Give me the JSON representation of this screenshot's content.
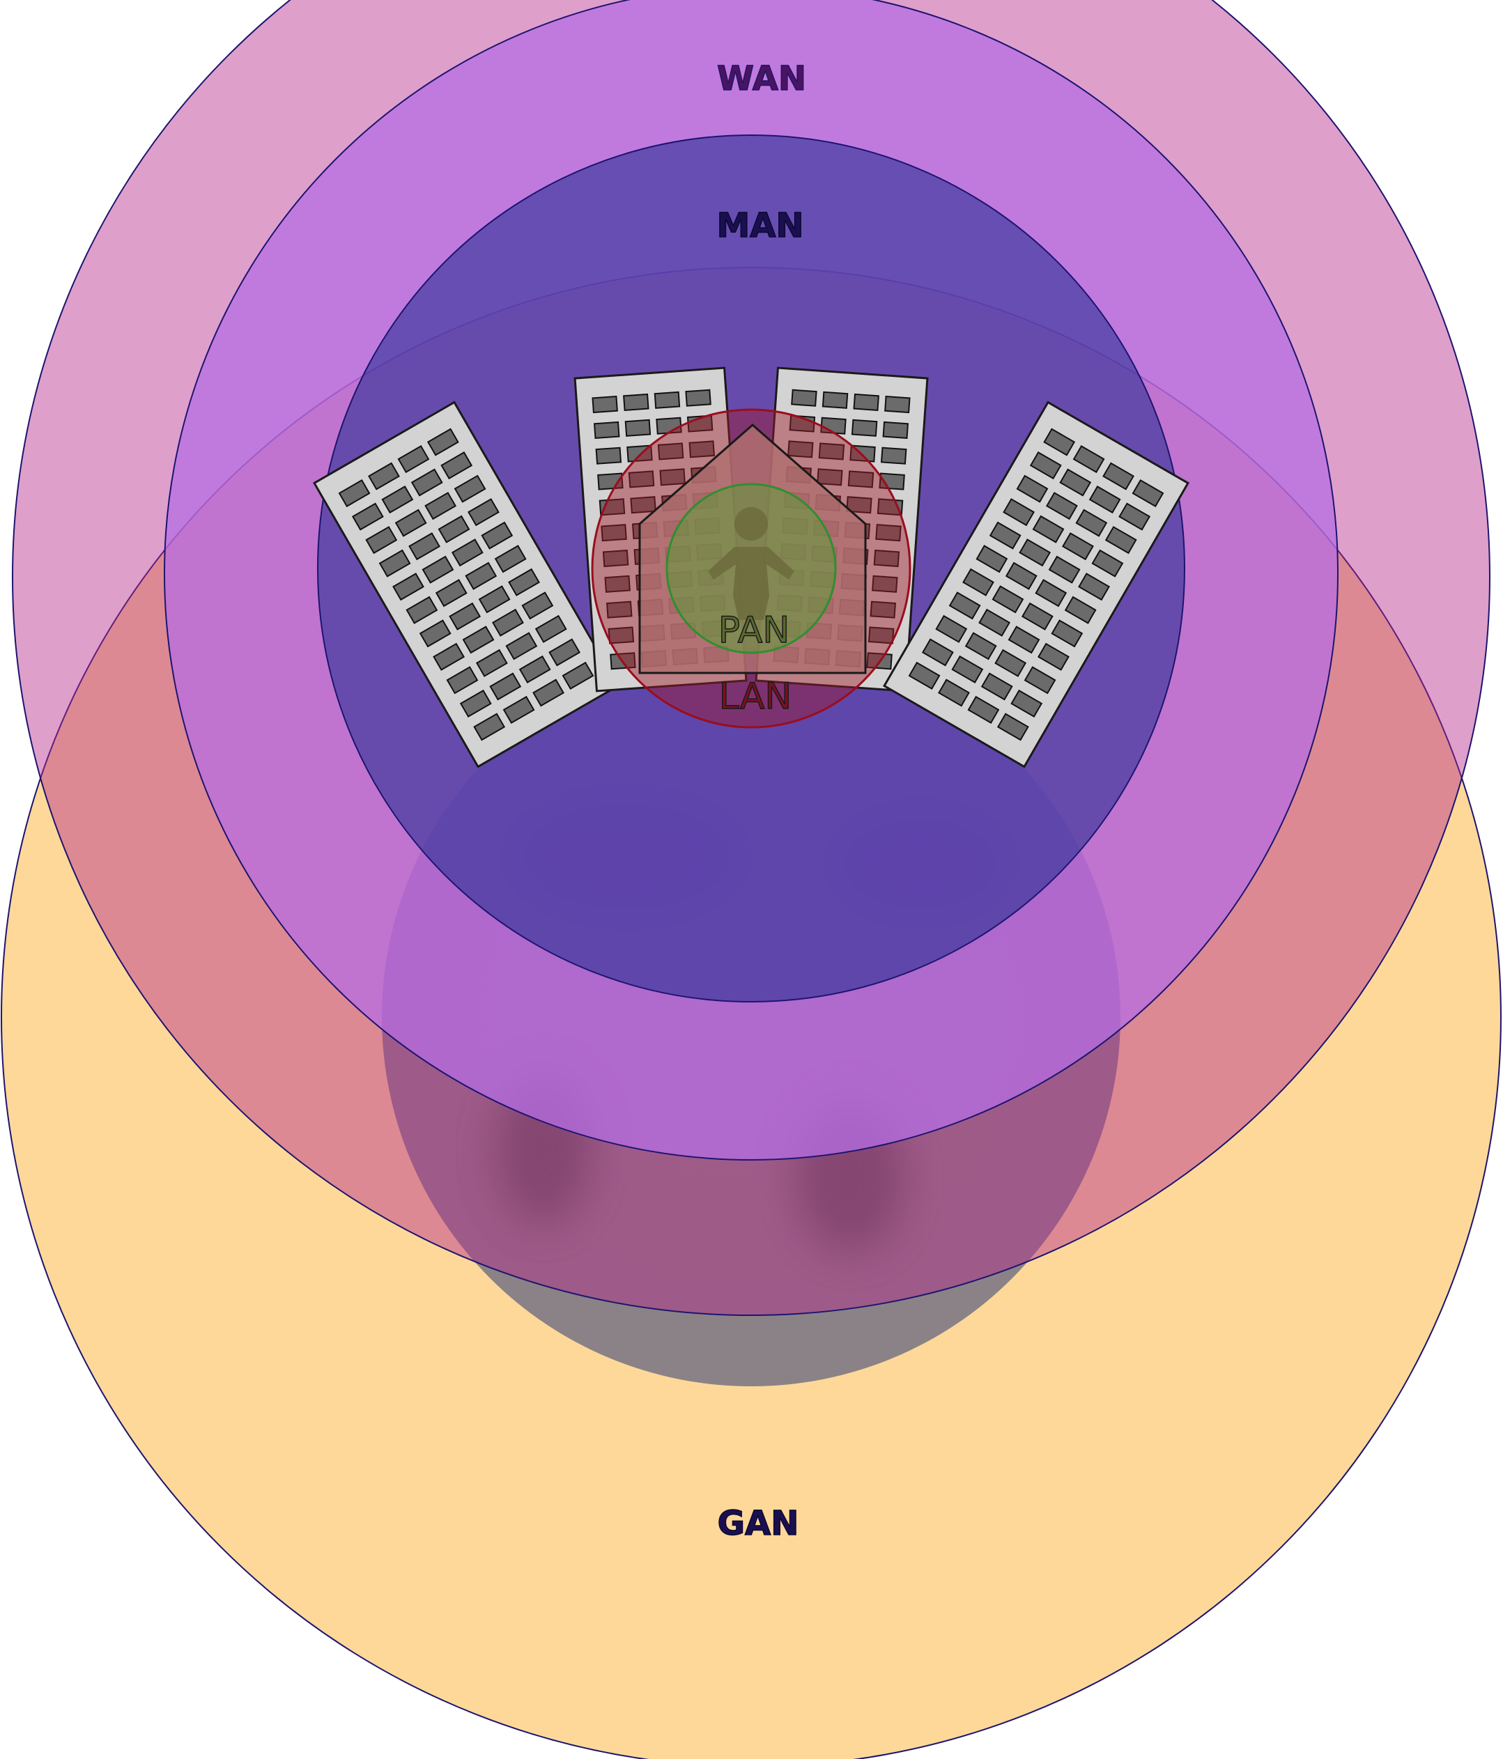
{
  "labels": {
    "wan": "WAN",
    "man": "MAN",
    "lan": "LAN",
    "pan": "PAN",
    "gan": "GAN"
  },
  "colors": {
    "gan_fill": "#fdd899",
    "wan_fill": "#c67ce6",
    "man_fill": "#2f2f99",
    "lan_fill": "#a03040",
    "pan_fill": "#7fa04a",
    "stroke": "#1d1470",
    "building_fill": "#d3d3d3",
    "window_fill": "#6b6b6b",
    "globe_fill": "#8d8487",
    "house_fill": "#b06e6e"
  },
  "icons": {
    "globe": "globe-icon",
    "buildings": "office-building-icon",
    "house": "house-icon",
    "person": "person-icon"
  }
}
